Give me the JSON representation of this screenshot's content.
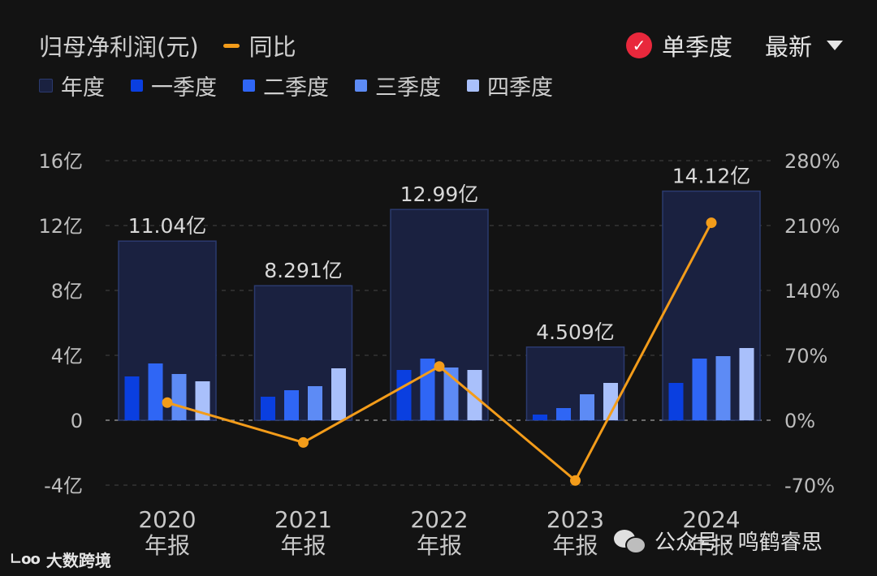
{
  "header": {
    "title": "归母净利润(元)",
    "yoy_label": "同比",
    "single_quarter_label": "单季度",
    "latest_label": "最新"
  },
  "legend": [
    {
      "label": "年度",
      "color": "#1a2140"
    },
    {
      "label": "一季度",
      "color": "#0a3fe0"
    },
    {
      "label": "二季度",
      "color": "#2f66f5"
    },
    {
      "label": "三季度",
      "color": "#5d8bf5"
    },
    {
      "label": "四季度",
      "color": "#a9c0fb"
    }
  ],
  "chart_data": {
    "type": "bar",
    "categories": [
      {
        "year": "2020",
        "suffix": "年报"
      },
      {
        "year": "2021",
        "suffix": "年报"
      },
      {
        "year": "2022",
        "suffix": "年报"
      },
      {
        "year": "2023",
        "suffix": "年报"
      },
      {
        "year": "2024",
        "suffix": "年报"
      }
    ],
    "annual": [
      11.04,
      8.291,
      12.99,
      4.509,
      14.12
    ],
    "annual_labels": [
      "11.04亿",
      "8.291亿",
      "12.99亿",
      "4.509亿",
      "14.12亿"
    ],
    "quarters": [
      [
        2.7,
        3.5,
        2.85,
        2.4
      ],
      [
        1.45,
        1.85,
        2.1,
        3.2
      ],
      [
        3.1,
        3.8,
        3.25,
        3.1
      ],
      [
        0.35,
        0.75,
        1.6,
        2.3
      ],
      [
        2.3,
        3.8,
        3.95,
        4.45
      ]
    ],
    "yoy": [
      19,
      -24,
      58,
      -65,
      213
    ],
    "y_left": {
      "min": -4,
      "max": 16,
      "ticks": [
        16,
        12,
        8,
        4,
        0,
        -4
      ],
      "tick_labels": [
        "16亿",
        "12亿",
        "8亿",
        "4亿",
        "0",
        "-4亿"
      ]
    },
    "y_right": {
      "min": -70,
      "max": 280,
      "ticks": [
        280,
        210,
        140,
        70,
        0,
        -70
      ],
      "tick_labels": [
        "280%",
        "210%",
        "140%",
        "70%",
        "0%",
        "-70%"
      ]
    },
    "colors": {
      "annual_fill": "#1a2140",
      "annual_stroke": "#2b3a6e",
      "q1": "#0a3fe0",
      "q2": "#2f66f5",
      "q3": "#5d8bf5",
      "q4": "#a9c0fb",
      "line": "#f39c1a",
      "grid": "#3c3c3c"
    }
  },
  "watermark": {
    "right_text": "公众号 · 鸣鹤睿思",
    "left_logo": "∟oo",
    "left_text": "大数跨境"
  }
}
